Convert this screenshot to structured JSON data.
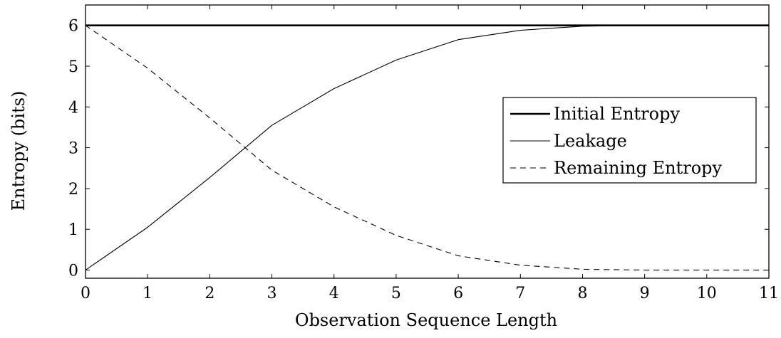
{
  "chart_data": {
    "type": "line",
    "title": "",
    "xlabel": "Observation Sequence Length",
    "ylabel": "Entropy (bits)",
    "xlim": [
      0,
      11
    ],
    "ylim": [
      -0.2,
      6.5
    ],
    "xticks": [
      0,
      1,
      2,
      3,
      4,
      5,
      6,
      7,
      8,
      9,
      10,
      11
    ],
    "yticks": [
      0,
      1,
      2,
      3,
      4,
      5,
      6
    ],
    "grid": false,
    "legend_position": "right",
    "x": [
      0,
      1,
      2,
      3,
      4,
      5,
      6,
      7,
      8,
      9,
      10,
      11
    ],
    "series": [
      {
        "name": "Initial Entropy",
        "style": "thick-solid",
        "values": [
          6,
          6,
          6,
          6,
          6,
          6,
          6,
          6,
          6,
          6,
          6,
          6
        ]
      },
      {
        "name": "Leakage",
        "style": "thin-solid",
        "values": [
          0,
          1.05,
          2.27,
          3.55,
          4.45,
          5.15,
          5.65,
          5.88,
          5.98,
          6.0,
          6.0,
          6.0
        ]
      },
      {
        "name": "Remaining Entropy",
        "style": "dashed",
        "values": [
          6,
          4.95,
          3.73,
          2.45,
          1.55,
          0.85,
          0.35,
          0.12,
          0.02,
          0.0,
          0.0,
          0.0
        ]
      }
    ]
  }
}
